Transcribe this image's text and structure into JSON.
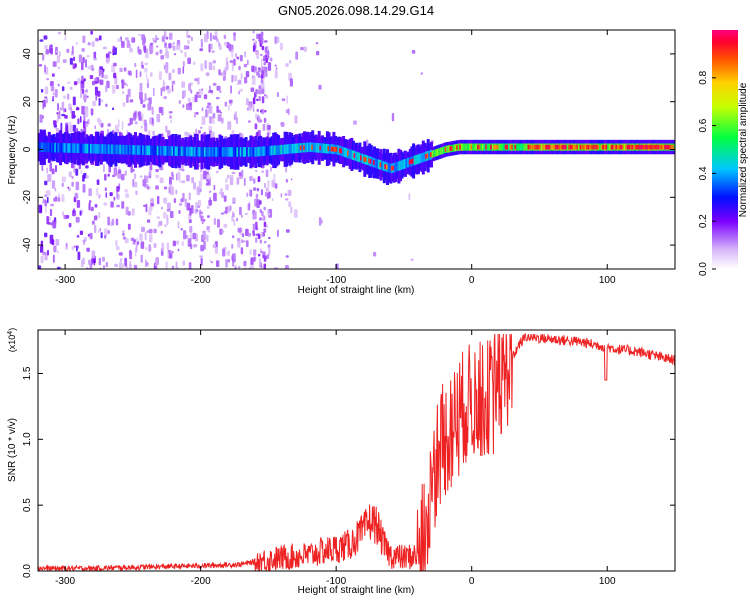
{
  "figure_title": "GN05.2026.098.14.29.G14",
  "chart_data": [
    {
      "type": "heatmap",
      "title": "GN05.2026.098.14.29.G14",
      "xlabel": "Height of straight line (km)",
      "ylabel": "Frequency (Hz)",
      "xlim": [
        -320,
        150
      ],
      "ylim": [
        -50,
        50
      ],
      "xticks": [
        -300,
        -200,
        -100,
        0,
        100
      ],
      "yticks": [
        -40,
        -20,
        0,
        20,
        40
      ],
      "ridge": {
        "x": [
          -320,
          -260,
          -200,
          -160,
          -140,
          -120,
          -100,
          -90,
          -80,
          -70,
          -60,
          -55,
          -45,
          -30,
          -20,
          -10,
          0,
          20,
          60,
          100,
          150
        ],
        "freq_hz": [
          1,
          0,
          -1,
          -1,
          0,
          1,
          0,
          -2,
          -4,
          -6,
          -8,
          -7,
          -5,
          -2,
          0,
          1,
          1,
          1,
          1,
          1,
          1
        ]
      },
      "colorbar": {
        "label": "Normalized spectral amplitude",
        "range": [
          0,
          1
        ],
        "ticks": [
          0.0,
          0.2,
          0.4,
          0.6,
          0.8
        ],
        "tick_labels": [
          "0.0",
          "0.2",
          "0.4",
          "0.6",
          "0.8"
        ]
      }
    },
    {
      "type": "line",
      "xlabel": "Height of straight line (km)",
      "ylabel": "SNR (10 * v/v)",
      "y_scale_label": "(x10",
      "y_scale_exp": "4",
      "y_scale_close": ")",
      "xlim": [
        -320,
        150
      ],
      "ylim": [
        0,
        1.83
      ],
      "xticks": [
        -300,
        -200,
        -100,
        0,
        100
      ],
      "yticks": [
        0.0,
        0.5,
        1.0,
        1.5
      ],
      "ytick_labels": [
        "0.0",
        "0.5",
        "1.0",
        "1.5"
      ],
      "color": "#ee2222",
      "series": [
        {
          "name": "SNR",
          "x": [
            -320,
            -280,
            -240,
            -200,
            -170,
            -160,
            -140,
            -120,
            -110,
            -100,
            -90,
            -80,
            -75,
            -70,
            -65,
            -60,
            -50,
            -40,
            -35,
            -30,
            -25,
            -20,
            -15,
            -10,
            -5,
            0,
            5,
            10,
            15,
            20,
            25,
            30,
            35,
            40,
            60,
            80,
            90,
            100,
            110,
            120,
            130,
            140,
            150
          ],
          "y": [
            0.02,
            0.02,
            0.03,
            0.04,
            0.05,
            0.07,
            0.1,
            0.12,
            0.15,
            0.17,
            0.2,
            0.3,
            0.38,
            0.35,
            0.2,
            0.12,
            0.1,
            0.12,
            0.25,
            0.6,
            0.9,
            1.0,
            1.05,
            1.2,
            1.25,
            1.3,
            1.3,
            1.3,
            1.35,
            1.4,
            1.5,
            1.62,
            1.72,
            1.78,
            1.76,
            1.74,
            1.72,
            1.7,
            1.68,
            1.67,
            1.65,
            1.62,
            1.6
          ]
        }
      ]
    }
  ]
}
